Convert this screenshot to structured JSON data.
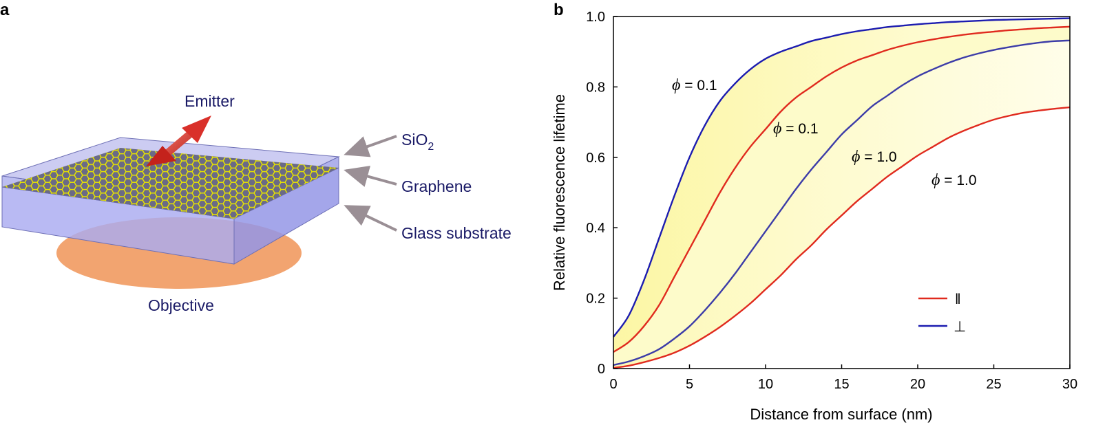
{
  "panel_a": {
    "letter": "a",
    "labels": {
      "emitter": "Emitter",
      "sio2_main": "SiO",
      "sio2_sub": "2",
      "graphene": "Graphene",
      "glass": "Glass substrate",
      "objective": "Objective"
    },
    "colors": {
      "label": "#1a1a66",
      "graphene": "#e8e400",
      "emitter": "#d9302a",
      "objective": "#f2a470",
      "slab": "#a9abf0"
    }
  },
  "chart_data": {
    "type": "line",
    "panel_letter": "b",
    "xlabel": "Distance from surface (nm)",
    "ylabel": "Relative fluorescence lifetime",
    "xlim": [
      0,
      30
    ],
    "ylim": [
      0,
      1.0
    ],
    "xticks": [
      "0",
      "5",
      "10",
      "15",
      "20",
      "25",
      "30"
    ],
    "yticks": [
      "0",
      "0.2",
      "0.4",
      "0.6",
      "0.8",
      "1.0"
    ],
    "x": [
      0,
      1,
      2,
      3,
      4,
      5,
      6,
      7,
      8,
      9,
      10,
      11,
      12,
      13,
      14,
      15,
      16,
      17,
      18,
      19,
      20,
      21,
      22,
      23,
      24,
      25,
      26,
      27,
      28,
      29,
      30
    ],
    "series": [
      {
        "name": "perpendicular, phi = 0.1",
        "orientation": "⊥",
        "color": "#1c1cb0",
        "values": [
          0.09,
          0.15,
          0.25,
          0.37,
          0.49,
          0.6,
          0.69,
          0.76,
          0.81,
          0.85,
          0.88,
          0.9,
          0.915,
          0.93,
          0.94,
          0.95,
          0.958,
          0.964,
          0.97,
          0.974,
          0.978,
          0.981,
          0.984,
          0.986,
          0.988,
          0.99,
          0.991,
          0.992,
          0.993,
          0.994,
          0.995
        ]
      },
      {
        "name": "parallel, phi = 0.1",
        "orientation": "‖",
        "color": "#e02a1e",
        "values": [
          0.047,
          0.075,
          0.12,
          0.18,
          0.26,
          0.34,
          0.42,
          0.5,
          0.57,
          0.63,
          0.68,
          0.73,
          0.77,
          0.8,
          0.83,
          0.855,
          0.875,
          0.89,
          0.905,
          0.917,
          0.927,
          0.935,
          0.942,
          0.948,
          0.953,
          0.957,
          0.961,
          0.964,
          0.967,
          0.969,
          0.971
        ]
      },
      {
        "name": "perpendicular, phi = 1.0",
        "orientation": "⊥",
        "color": "#3c3ca8",
        "values": [
          0.01,
          0.02,
          0.035,
          0.055,
          0.085,
          0.12,
          0.165,
          0.215,
          0.27,
          0.33,
          0.39,
          0.45,
          0.51,
          0.565,
          0.615,
          0.665,
          0.705,
          0.745,
          0.775,
          0.805,
          0.83,
          0.85,
          0.868,
          0.883,
          0.895,
          0.905,
          0.913,
          0.92,
          0.926,
          0.93,
          0.932
        ]
      },
      {
        "name": "parallel, phi = 1.0",
        "orientation": "‖",
        "color": "#e02a1e",
        "values": [
          0.002,
          0.008,
          0.018,
          0.03,
          0.045,
          0.065,
          0.09,
          0.118,
          0.15,
          0.185,
          0.225,
          0.265,
          0.31,
          0.35,
          0.395,
          0.435,
          0.475,
          0.51,
          0.545,
          0.575,
          0.605,
          0.63,
          0.655,
          0.675,
          0.692,
          0.707,
          0.718,
          0.727,
          0.733,
          0.738,
          0.742
        ]
      }
    ],
    "annotations": [
      {
        "phi": "ϕ",
        "text": " = 0.1"
      },
      {
        "phi": "ϕ",
        "text": " = 0.1"
      },
      {
        "phi": "ϕ",
        "text": " = 1.0"
      },
      {
        "phi": "ϕ",
        "text": " = 1.0"
      }
    ],
    "legend": {
      "position": "lower-right",
      "entries": [
        {
          "label": "‖",
          "color": "#e02a1e"
        },
        {
          "label": "⊥",
          "color": "#1c1cb0"
        }
      ]
    },
    "fill_color": "#fdfbc4"
  }
}
